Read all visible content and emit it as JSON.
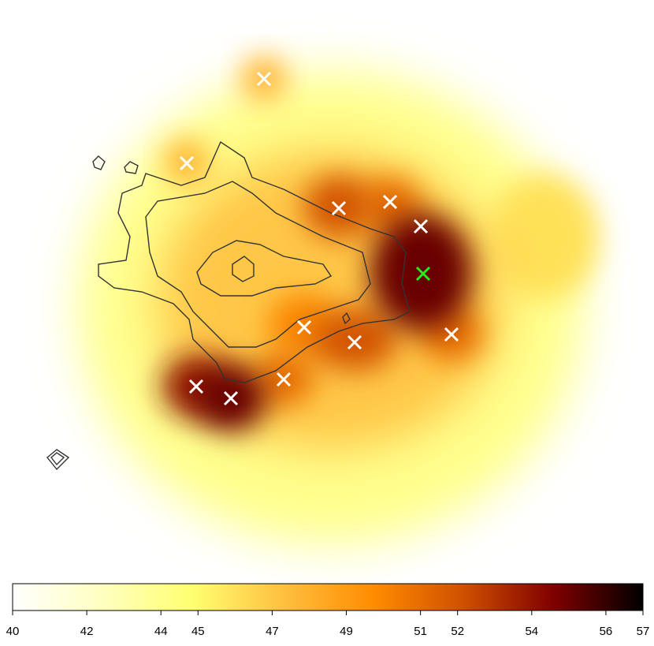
{
  "chart_data": {
    "type": "heatmap",
    "clim": [
      40,
      57
    ],
    "colormap": [
      "#ffffff",
      "#ffffc0",
      "#ffff70",
      "#ffc040",
      "#ff8c00",
      "#d05000",
      "#800000",
      "#000000"
    ],
    "ticks": [
      40,
      42,
      44,
      45,
      47,
      49,
      51,
      52,
      54,
      56,
      57
    ],
    "peaks": [
      44,
      47,
      46,
      48,
      48,
      52,
      51,
      55,
      51,
      52,
      50,
      51,
      54,
      55
    ]
  }
}
